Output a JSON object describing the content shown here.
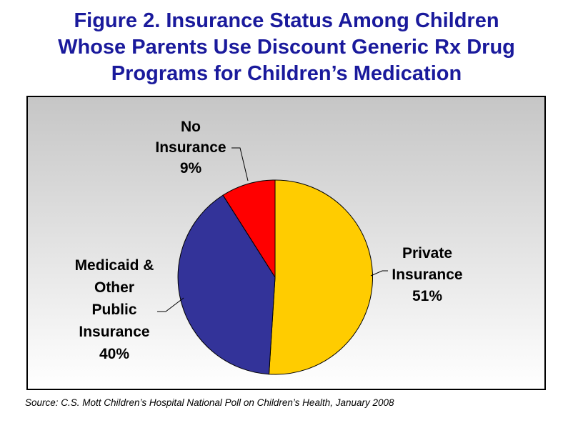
{
  "figure": {
    "title_lines": [
      "Figure 2. Insurance Status Among Children",
      "Whose Parents Use Discount Generic Rx Drug",
      "Programs for Children’s Medication"
    ],
    "title_color": "#1A1A9C",
    "source": "Source: C.S. Mott Children’s Hospital National Poll on Children’s Health, January 2008"
  },
  "chart_data": {
    "type": "pie",
    "title": "Insurance Status Among Children Whose Parents Use Discount Generic Rx Drug Programs for Children's Medication",
    "start_angle": "12-o'clock",
    "direction": "clockwise",
    "stroke": "#000000",
    "plot_bg_top": "#C6C6C6",
    "plot_bg_bottom": "#FFFFFF",
    "slices": [
      {
        "label": "Private Insurance",
        "value": 51,
        "unit": "%",
        "color": "#FFCC00",
        "label_lines": [
          "Private",
          "Insurance",
          "51%"
        ]
      },
      {
        "label": "Medicaid & Other Public Insurance",
        "value": 40,
        "unit": "%",
        "color": "#333399",
        "label_lines": [
          "Medicaid &",
          "Other",
          "Public",
          "Insurance",
          "40%"
        ]
      },
      {
        "label": "No Insurance",
        "value": 9,
        "unit": "%",
        "color": "#FF0000",
        "label_lines": [
          "No",
          "Insurance",
          "9%"
        ]
      }
    ]
  }
}
